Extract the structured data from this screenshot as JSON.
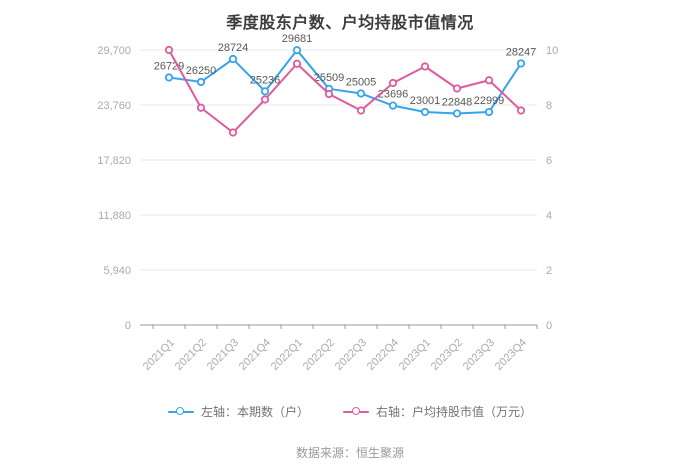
{
  "title": "季度股东户数、户均持股市值情况",
  "source": "数据来源：恒生聚源",
  "colors": {
    "series_left": "#36a3ec",
    "series_right": "#df5a9e",
    "grid": "#e8e8e8",
    "axis_line": "#999999",
    "axis_text": "#aaaaaa",
    "point_label": "#595959",
    "title_text": "#3d3d3d"
  },
  "legend": {
    "items": [
      {
        "label": "左轴：本期数（户）",
        "color": "#36a3ec"
      },
      {
        "label": "右轴：户均持股市值（万元）",
        "color": "#df5a9e"
      }
    ]
  },
  "chart_data": {
    "type": "line",
    "title": "季度股东户数、户均持股市值情况",
    "categories": [
      "2021Q1",
      "2021Q2",
      "2021Q3",
      "2021Q4",
      "2022Q1",
      "2022Q2",
      "2022Q3",
      "2022Q4",
      "2023Q1",
      "2023Q2",
      "2023Q3",
      "2023Q4"
    ],
    "series": [
      {
        "name": "左轴：本期数（户）",
        "axis": "left",
        "color": "#36a3ec",
        "values": [
          26729,
          26250,
          28724,
          25236,
          29681,
          25509,
          25005,
          23696,
          23001,
          22848,
          22999,
          28247
        ],
        "labels_visible": true
      },
      {
        "name": "右轴：户均持股市值（万元）",
        "axis": "right",
        "color": "#df5a9e",
        "values": [
          10.0,
          7.9,
          7.0,
          8.2,
          9.5,
          8.4,
          7.8,
          8.8,
          9.4,
          8.6,
          8.9,
          7.8
        ],
        "labels_visible": false,
        "values_estimated": true
      }
    ],
    "left_axis": {
      "min": 0,
      "max": 29700,
      "ticks": [
        0,
        5940,
        11880,
        17820,
        23760,
        29700
      ]
    },
    "right_axis": {
      "min": 0,
      "max": 10,
      "ticks": [
        0,
        2,
        4,
        6,
        8,
        10
      ]
    },
    "grid": true,
    "legend_position": "bottom",
    "x_label_rotation": -45
  }
}
